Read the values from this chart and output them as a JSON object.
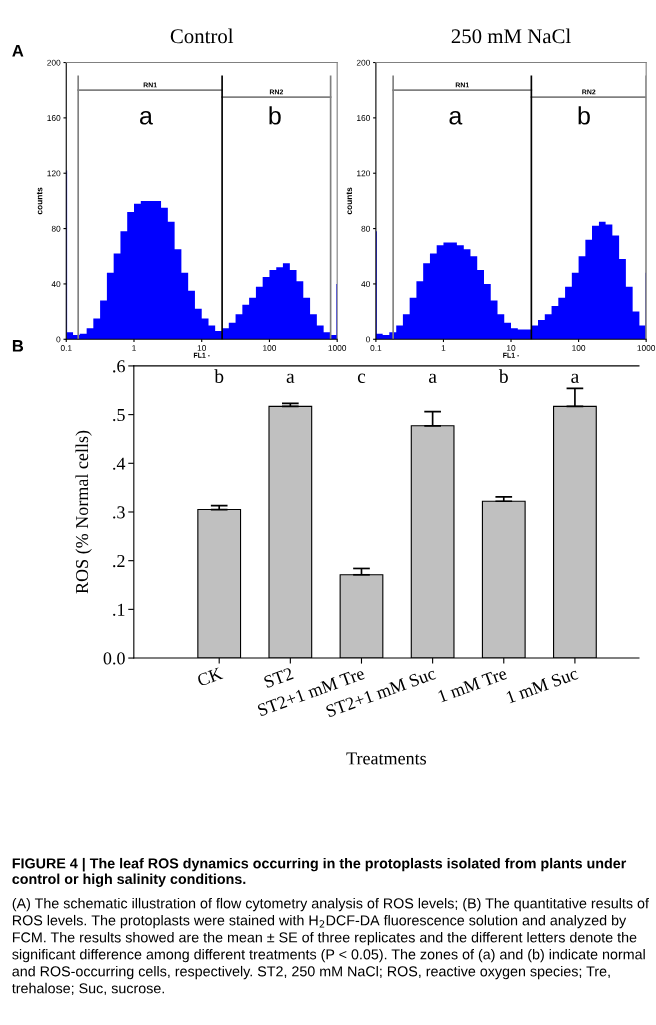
{
  "chart_data": [
    {
      "type": "histogram",
      "title": "Control",
      "xlabel": "FL1 -",
      "ylabel": "counts",
      "log": "x",
      "xlim": [
        0.1,
        1000
      ],
      "xticks": [
        0.1,
        1,
        10,
        100,
        1000
      ],
      "ylim": [
        0,
        200
      ],
      "yticks": [
        0,
        40,
        80,
        120,
        160,
        200
      ],
      "grid": false,
      "color": "#0000ff",
      "bins": [
        0.1,
        0.103,
        0.126,
        0.158,
        0.2,
        0.251,
        0.316,
        0.398,
        0.501,
        0.631,
        0.794,
        1,
        1.26,
        1.58,
        2,
        2.51,
        3.16,
        3.98,
        5.01,
        6.31,
        7.94,
        10,
        12.6,
        15.8,
        20,
        25.1,
        31.6,
        39.8,
        50.1,
        63.1,
        79.4,
        100,
        126,
        158,
        200,
        251,
        316,
        398,
        501,
        631,
        794,
        970,
        1000
      ],
      "values": [
        122,
        5,
        3,
        4,
        8,
        15,
        28,
        48,
        62,
        78,
        92,
        98,
        100,
        100,
        100,
        95,
        85,
        65,
        48,
        35,
        22,
        15,
        10,
        6,
        8,
        12,
        18,
        25,
        30,
        38,
        45,
        50,
        52,
        55,
        50,
        42,
        30,
        18,
        10,
        5,
        3,
        40
      ],
      "ref_lines": [
        {
          "axis": "x",
          "value": 0.15,
          "color": "#808080"
        },
        {
          "axis": "x",
          "value": 20,
          "color": "#000000"
        },
        {
          "axis": "x",
          "value": 800,
          "color": "#808080"
        }
      ],
      "series": [
        {
          "type": "line",
          "color": "#808080",
          "x": [
            0.15,
            20
          ],
          "values": [
            180,
            180
          ]
        },
        {
          "type": "line",
          "color": "#808080",
          "x": [
            20,
            800
          ],
          "values": [
            175,
            175
          ]
        }
      ],
      "annotations": [
        "A",
        "RN1",
        "RN2",
        "a",
        "b"
      ]
    },
    {
      "type": "histogram",
      "title": "250 mM NaCl",
      "xlabel": "FL1 -",
      "ylabel": "counts",
      "log": "x",
      "xlim": [
        0.1,
        1000
      ],
      "xticks": [
        0.1,
        1,
        10,
        100,
        1000
      ],
      "ylim": [
        0,
        200
      ],
      "yticks": [
        0,
        40,
        80,
        120,
        160,
        200
      ],
      "grid": false,
      "color": "#0000ff",
      "bins": [
        0.1,
        0.103,
        0.126,
        0.158,
        0.2,
        0.251,
        0.316,
        0.398,
        0.501,
        0.631,
        0.794,
        1,
        1.26,
        1.58,
        2,
        2.51,
        3.16,
        3.98,
        5.01,
        6.31,
        7.94,
        10,
        12.6,
        15.8,
        20,
        25.1,
        31.6,
        39.8,
        50.1,
        63.1,
        79.4,
        100,
        126,
        158,
        200,
        251,
        316,
        398,
        501,
        631,
        794,
        970,
        1000
      ],
      "values": [
        78,
        4,
        3,
        5,
        10,
        18,
        30,
        42,
        55,
        62,
        68,
        70,
        70,
        68,
        65,
        60,
        50,
        40,
        28,
        18,
        12,
        8,
        7,
        7,
        10,
        14,
        18,
        24,
        30,
        38,
        48,
        60,
        72,
        82,
        85,
        83,
        75,
        58,
        38,
        20,
        10,
        48
      ],
      "ref_lines": [
        {
          "axis": "x",
          "value": 0.18,
          "color": "#808080"
        },
        {
          "axis": "x",
          "value": 20,
          "color": "#000000"
        },
        {
          "axis": "x",
          "value": 1000,
          "color": "#808080"
        }
      ],
      "series": [
        {
          "type": "line",
          "color": "#808080",
          "x": [
            0.18,
            20
          ],
          "values": [
            180,
            180
          ]
        },
        {
          "type": "line",
          "color": "#808080",
          "x": [
            20,
            1000
          ],
          "values": [
            175,
            175
          ]
        }
      ],
      "annotations": [
        "RN1",
        "RN2",
        "a",
        "b"
      ]
    },
    {
      "type": "bar",
      "xlabel": "Treatments",
      "ylabel": "ROS (% Normal cells)",
      "categories": [
        "CK",
        "ST2",
        "ST2+1 mM Tre",
        "ST2+1 mM Suc",
        "1 mM Tre",
        "1 mM Suc"
      ],
      "values": [
        0.305,
        0.517,
        0.171,
        0.477,
        0.322,
        0.517
      ],
      "color": "#c0c0c0",
      "errors": [
        [
          0.305,
          0.313
        ],
        [
          0.517,
          0.523
        ],
        [
          0.171,
          0.184
        ],
        [
          0.477,
          0.506
        ],
        [
          0.322,
          0.331
        ],
        [
          0.517,
          0.554
        ]
      ],
      "ylim": [
        0,
        0.6
      ],
      "yticks": [
        {
          "value": 0,
          "label": "0.0"
        },
        {
          "value": 0.1,
          "label": ".1"
        },
        {
          "value": 0.2,
          "label": ".2"
        },
        {
          "value": 0.3,
          "label": ".3"
        },
        {
          "value": 0.4,
          "label": ".4"
        },
        {
          "value": 0.5,
          "label": ".5"
        },
        {
          "value": 0.6,
          "label": ".6"
        }
      ],
      "grid": false,
      "annotations": [
        "B",
        "b",
        "a",
        "c",
        "a",
        "b",
        "a",
        "FIGURE 4 | The leaf ROS dynamics occurring in the protoplasts isolated from plants under control or high salinity conditions.",
        "(A) The schematic illustration of flow cytometry analysis of ROS levels; (B) The quantitative results of ROS levels. The protoplasts were stained with H$_{2}$DCF-DA fluorescence solution and analyzed by FCM. The results showed are the mean ± SE of three replicates and the different letters denote the significant difference among different treatments (P < 0.05). The zones of (a) and (b) indicate normal and ROS-occurring cells, respectively. ST2, 250 mM NaCl; ROS, reactive oxygen species; Tre, trehalose; Suc, sucrose."
      ]
    }
  ]
}
